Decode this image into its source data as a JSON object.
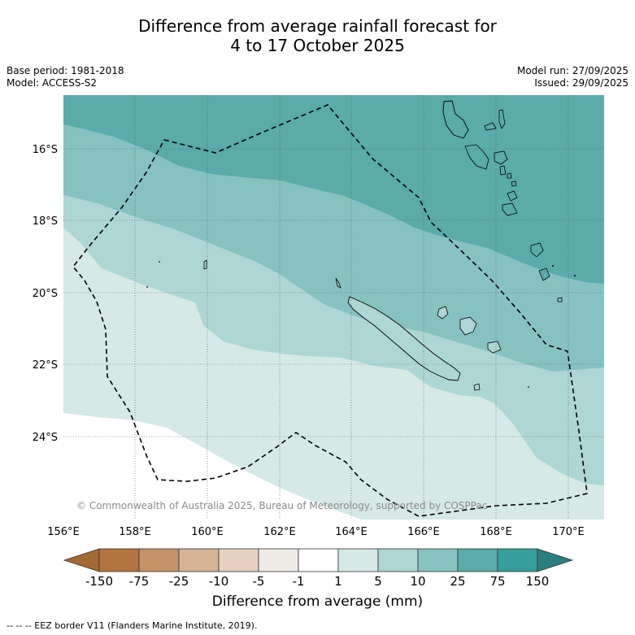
{
  "title": {
    "line1": "Difference from average rainfall forecast for",
    "line2": "4 to 17 October 2025"
  },
  "meta": {
    "base_period": "Base period: 1981-2018",
    "model": "Model: ACCESS-S2",
    "model_run": "Model run: 27/09/2025",
    "issued": "Issued: 29/09/2025"
  },
  "axes": {
    "lon_labels": [
      "156°E",
      "158°E",
      "160°E",
      "162°E",
      "164°E",
      "166°E",
      "168°E",
      "170°E"
    ],
    "lat_labels": [
      "16°S",
      "18°S",
      "20°S",
      "22°S",
      "24°S"
    ]
  },
  "copyright": "© Commonwealth of Australia 2025, Bureau of Meteorology, supported by COSPPac",
  "colorbar": {
    "title": "Difference from average (mm)",
    "labels": [
      "-150",
      "-75",
      "-25",
      "-10",
      "-5",
      "-1",
      "1",
      "5",
      "10",
      "25",
      "75",
      "150"
    ],
    "colors": {
      "ext_low": "#a46a33",
      "b1": "#b07540",
      "b2": "#c49367",
      "b3": "#d6b394",
      "b4": "#e6d2bf",
      "b5": "#efebe7",
      "b6": "#ffffff",
      "b7": "#d5e9e7",
      "b8": "#aed6d4",
      "b9": "#86c2c0",
      "b10": "#5aabaa",
      "b11": "#369e9b",
      "ext_high": "#2a7f7e"
    }
  },
  "footnote": "--  --  -- EEZ border V11 (Flanders Marine Institute, 2019)."
}
